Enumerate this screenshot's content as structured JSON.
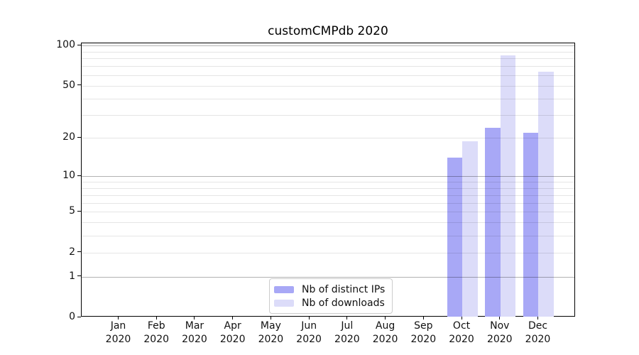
{
  "chart_data": {
    "type": "bar",
    "title": "customCMPdb 2020",
    "categories": [
      "Jan 2020",
      "Feb 2020",
      "Mar 2020",
      "Apr 2020",
      "May 2020",
      "Jun 2020",
      "Jul 2020",
      "Aug 2020",
      "Sep 2020",
      "Oct 2020",
      "Nov 2020",
      "Dec 2020"
    ],
    "series": [
      {
        "name": "Nb of distinct IPs",
        "color": "#a8a8f6",
        "values": [
          0,
          0,
          0,
          0,
          0,
          0,
          0,
          0,
          0,
          14,
          24,
          22
        ]
      },
      {
        "name": "Nb of downloads",
        "color": "#dcdcf9",
        "values": [
          0,
          0,
          0,
          0,
          0,
          0,
          0,
          0,
          0,
          19,
          85,
          64
        ]
      }
    ],
    "yscale": "log1p",
    "y_ticks": [
      0,
      1,
      2,
      5,
      10,
      20,
      50,
      100
    ],
    "y_grid_major": [
      1,
      10,
      100
    ],
    "y_grid_minor": [
      2,
      3,
      4,
      5,
      6,
      7,
      8,
      9,
      20,
      30,
      40,
      50,
      60,
      70,
      80,
      90
    ],
    "ylim": [
      0,
      104
    ],
    "xlabel": "",
    "ylabel": "",
    "grid": true,
    "grid_minor_color": "rgba(0,0,0,0.10)",
    "grid_major_color": "rgba(0,0,0,0.30)",
    "legend_position": "lower center",
    "axis_color": "#000000",
    "background_color": "#ffffff"
  }
}
